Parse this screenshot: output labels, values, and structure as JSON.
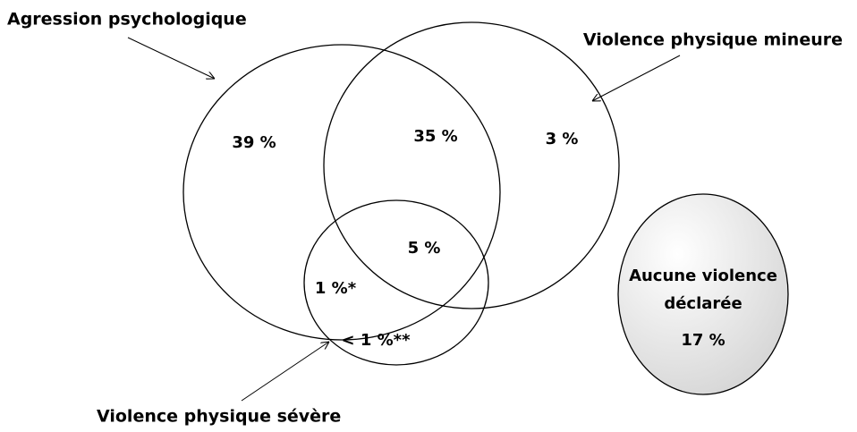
{
  "sets": [
    {
      "label": "Agression psychologique"
    },
    {
      "label": "Violence physique mineure"
    },
    {
      "label": "Violence physique sévère"
    },
    {
      "label": [
        "Aucune violence",
        "déclarée"
      ]
    }
  ],
  "regions": [
    {
      "label": "39 %"
    },
    {
      "label": "35 %"
    },
    {
      "label": "3 %"
    },
    {
      "label": "5 %"
    },
    {
      "label": "1 %*"
    },
    {
      "label": "< 1 %**"
    },
    {
      "label": "17 %"
    }
  ]
}
